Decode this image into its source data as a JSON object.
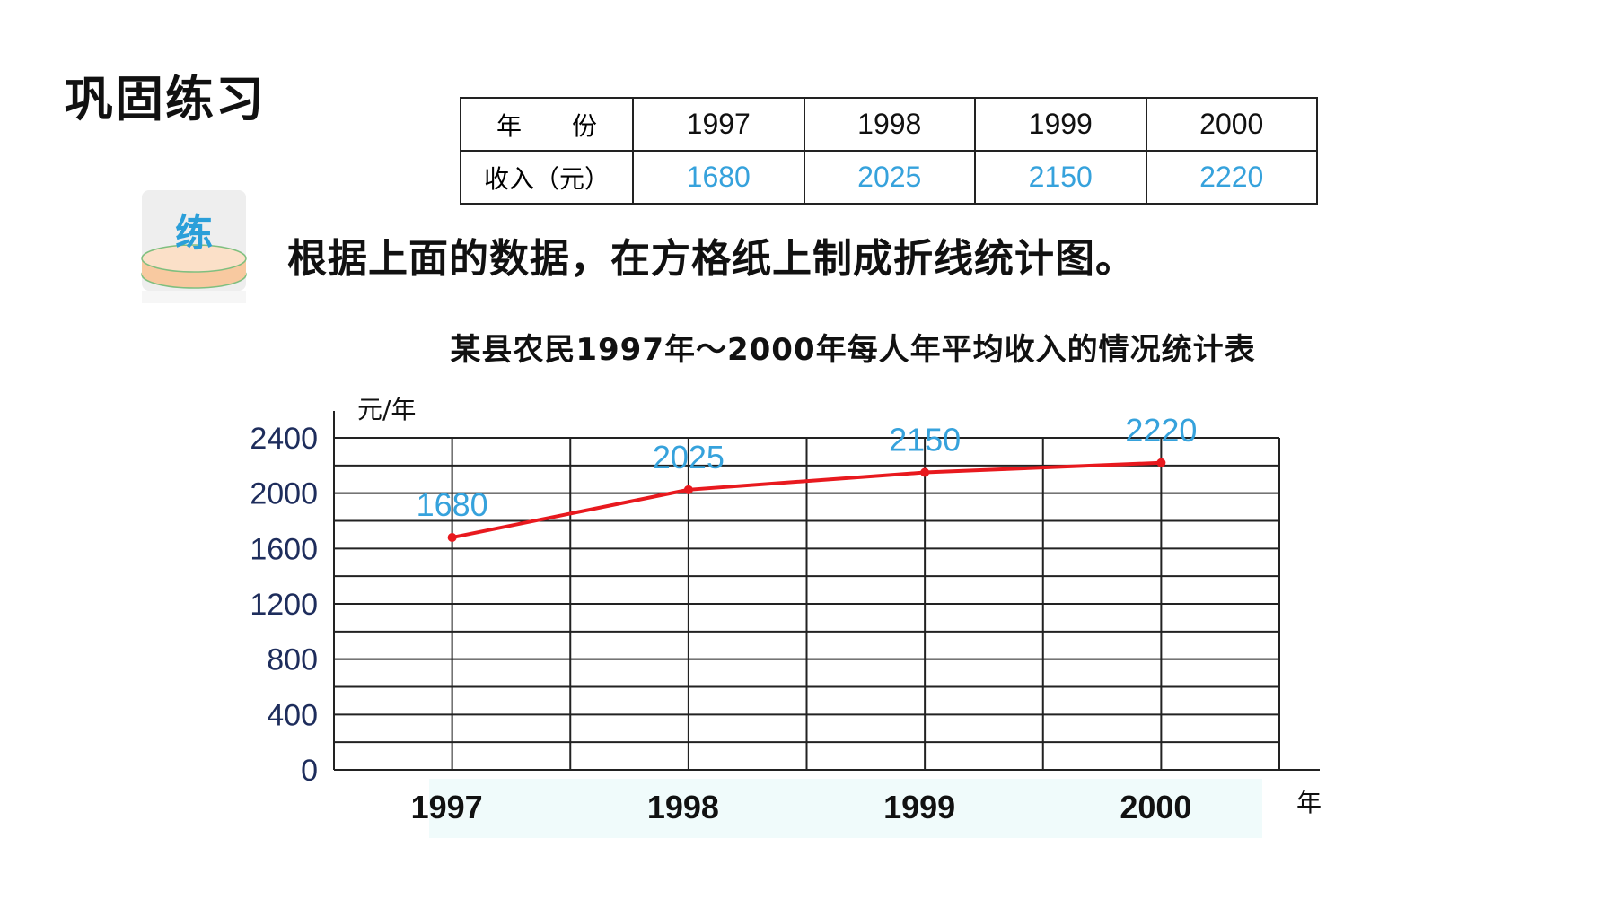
{
  "heading": "巩固练习",
  "table": {
    "row_headers": [
      "年　　份",
      "收入（元）"
    ],
    "years": [
      "1997",
      "1998",
      "1999",
      "2000"
    ],
    "incomes": [
      "1680",
      "2025",
      "2150",
      "2220"
    ]
  },
  "badge": {
    "label": "练"
  },
  "instruction": "根据上面的数据，在方格纸上制成折线统计图。",
  "colors": {
    "line": "#e8191e",
    "value_label": "#36a2dc",
    "y_tick": "#1e2d5c",
    "badge_base": "#f8c9a0",
    "badge_label": "#2b9fd9",
    "x_label_bg": "#f0fbfb"
  },
  "chart_data": {
    "type": "line",
    "title": "某县农民1997年～2000年每人年平均收入的情况统计表",
    "ylabel": "元/年",
    "xlabel": "年",
    "categories": [
      "1997",
      "1998",
      "1999",
      "2000"
    ],
    "y_ticks": [
      "2400",
      "2000",
      "1600",
      "1200",
      "800",
      "400",
      "0"
    ],
    "ylim": [
      0,
      2400
    ],
    "grid": true,
    "series": [
      {
        "values": [
          1680,
          2025,
          2150,
          2220
        ]
      }
    ],
    "data_labels": [
      "1680",
      "2025",
      "2150",
      "2220"
    ]
  }
}
